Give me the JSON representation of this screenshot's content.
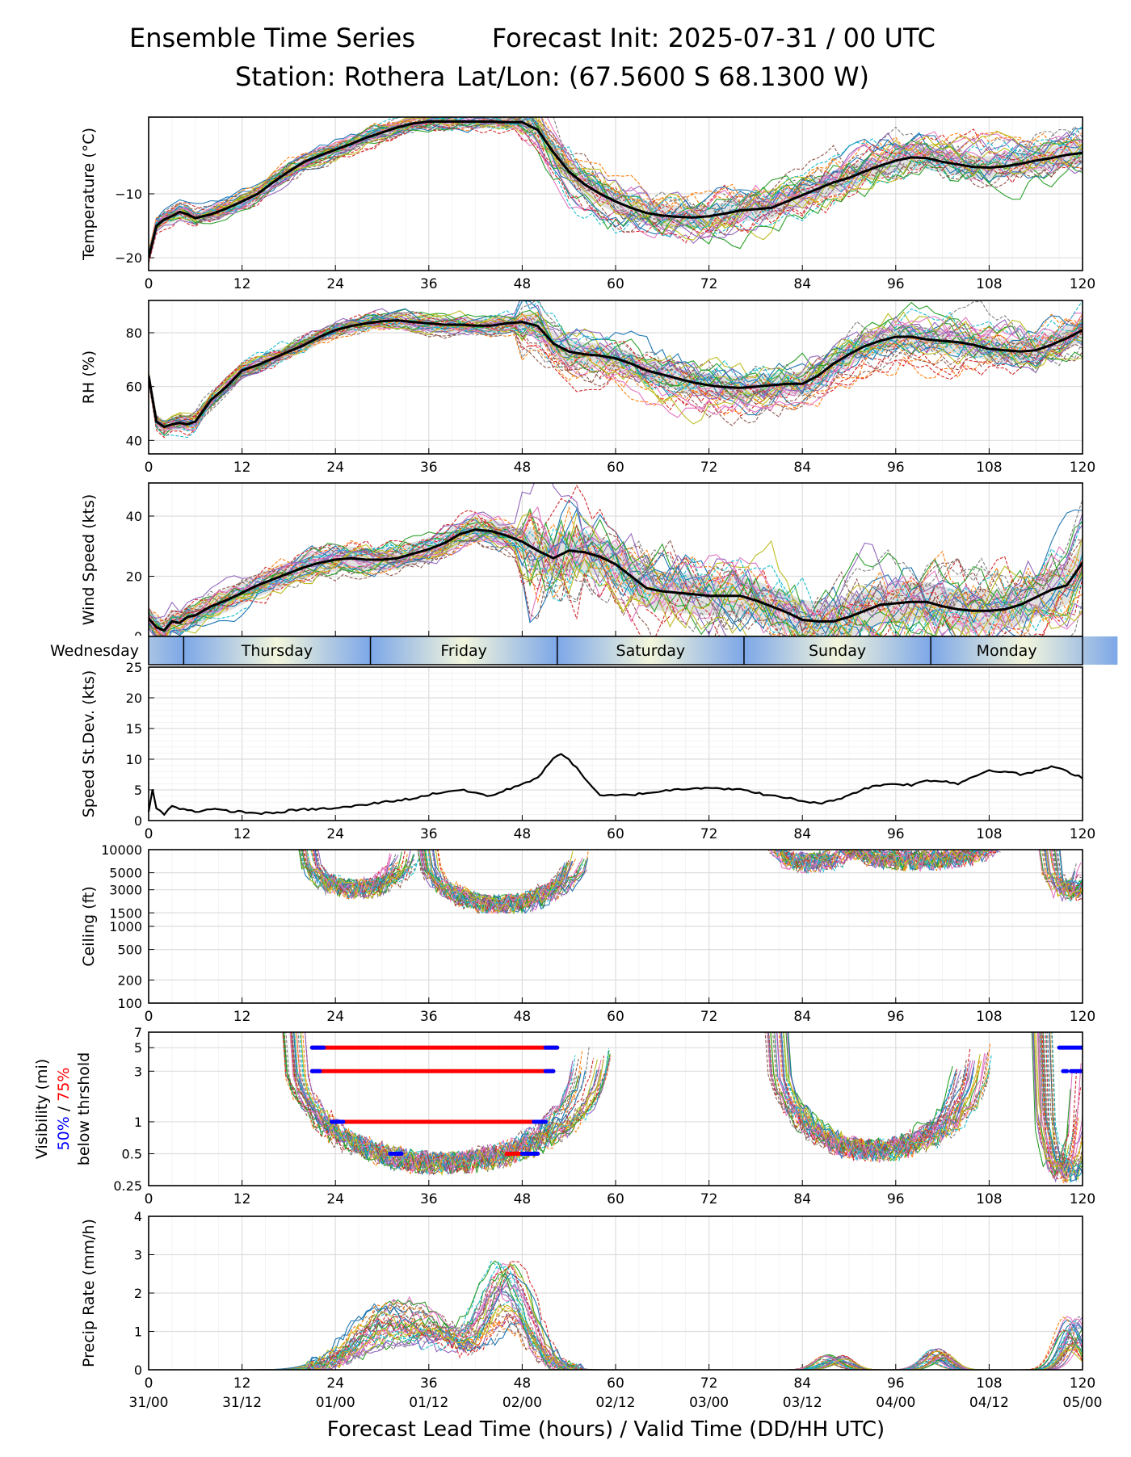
{
  "header": {
    "title": "Ensemble Time Series",
    "init": "Forecast Init: 2025-07-31 / 00 UTC",
    "station": "Station: Rothera",
    "latlon": "Lat/Lon: (67.5600 S 68.1300 W)"
  },
  "xaxis": {
    "lead_ticks": [
      0,
      12,
      24,
      36,
      48,
      60,
      72,
      84,
      96,
      108,
      120
    ],
    "valid_labels": [
      "31/00",
      "31/12",
      "01/00",
      "01/12",
      "02/00",
      "02/12",
      "03/00",
      "03/12",
      "04/00",
      "04/12",
      "05/00"
    ],
    "xlabel": "Forecast Lead Time (hours) / Valid Time (DD/HH UTC)",
    "range": [
      0,
      120
    ]
  },
  "days": [
    {
      "name": "Wednesday",
      "start": -20,
      "end": 4.5
    },
    {
      "name": "Thursday",
      "start": 4.5,
      "end": 28.5
    },
    {
      "name": "Friday",
      "start": 28.5,
      "end": 52.5
    },
    {
      "name": "Saturday",
      "start": 52.5,
      "end": 76.5
    },
    {
      "name": "Sunday",
      "start": 76.5,
      "end": 100.5
    },
    {
      "name": "Monday",
      "start": 100.5,
      "end": 124.5
    }
  ],
  "colors": {
    "ensemble_palette": [
      "#1f77b4",
      "#ff7f0e",
      "#2ca02c",
      "#d62728",
      "#9467bd",
      "#8c564b",
      "#e377c2",
      "#7f7f7f",
      "#bcbd22",
      "#17becf"
    ],
    "mean": "#000000",
    "spread": "#cccccc",
    "vis_50": "#0000ff",
    "vis_75": "#ff0000"
  },
  "vis_ylabel": {
    "line1": "Visibility (mi)",
    "p50": "50%",
    "slash": " / ",
    "p75": "75%",
    "line3": "below thrshold"
  },
  "chart_data": [
    {
      "id": "temperature",
      "type": "line",
      "ylabel": "Temperature (°C)",
      "ylim": [
        -22,
        2
      ],
      "yticks": [
        -20,
        -10
      ],
      "mean": {
        "x": [
          0,
          1,
          2,
          3,
          4,
          5,
          6,
          8,
          10,
          12,
          14,
          16,
          18,
          20,
          22,
          24,
          26,
          28,
          30,
          32,
          34,
          36,
          38,
          40,
          42,
          44,
          46,
          48,
          50,
          52,
          54,
          56,
          58,
          60,
          62,
          64,
          66,
          68,
          70,
          72,
          74,
          76,
          78,
          80,
          82,
          84,
          86,
          88,
          90,
          92,
          94,
          96,
          98,
          100,
          102,
          104,
          106,
          108,
          110,
          112,
          114,
          116,
          118,
          120
        ],
        "y": [
          -20,
          -15,
          -14,
          -13.5,
          -12.8,
          -13.2,
          -13.8,
          -13.2,
          -12.3,
          -11.2,
          -10,
          -8.2,
          -6.5,
          -5,
          -4,
          -3.1,
          -2.2,
          -1.2,
          -0.4,
          0.4,
          1,
          1.3,
          1.3,
          1.3,
          1.3,
          1.3,
          1.2,
          1.2,
          0,
          -3.5,
          -6.5,
          -8.5,
          -10,
          -11.2,
          -12.2,
          -13,
          -13.4,
          -13.6,
          -13.7,
          -13.5,
          -13.1,
          -12.6,
          -12.4,
          -12.2,
          -11.2,
          -10.2,
          -9.2,
          -8.2,
          -7.5,
          -6.5,
          -5.6,
          -4.8,
          -4.3,
          -4.4,
          -5,
          -5.4,
          -5.8,
          -5.9,
          -5.7,
          -5.3,
          -4.8,
          -4.4,
          -3.9,
          -3.6
        ]
      },
      "spread": 0.8
    },
    {
      "id": "rh",
      "type": "line",
      "ylabel": "RH (%)",
      "ylim": [
        35,
        92
      ],
      "yticks": [
        40,
        60,
        80
      ],
      "mean": {
        "x": [
          0,
          1,
          2,
          3,
          4,
          5,
          6,
          8,
          10,
          12,
          14,
          16,
          18,
          20,
          22,
          24,
          26,
          28,
          30,
          32,
          34,
          36,
          38,
          40,
          42,
          44,
          46,
          48,
          50,
          52,
          54,
          56,
          58,
          60,
          62,
          64,
          66,
          68,
          70,
          72,
          74,
          76,
          78,
          80,
          82,
          84,
          86,
          88,
          90,
          92,
          94,
          96,
          98,
          100,
          102,
          104,
          106,
          108,
          110,
          112,
          114,
          116,
          118,
          120
        ],
        "y": [
          64,
          47,
          45,
          46,
          46.5,
          46,
          47,
          55,
          60,
          66,
          68,
          70.5,
          73,
          75.5,
          78.5,
          81,
          82.5,
          83.5,
          84.3,
          84.6,
          84,
          83.5,
          83,
          83,
          82.6,
          82.6,
          83.5,
          84,
          82.5,
          76,
          73,
          72,
          71.5,
          70.5,
          68.5,
          66,
          64.5,
          63,
          61.5,
          60.5,
          59.8,
          59.5,
          60,
          60.5,
          61,
          61,
          64,
          68.5,
          72,
          75,
          77,
          78.5,
          78.5,
          77.5,
          77,
          76.5,
          75.5,
          74,
          73.5,
          73,
          73.5,
          75.5,
          78,
          81
        ]
      },
      "spread": 2.0
    },
    {
      "id": "wind",
      "type": "line",
      "ylabel": "Wind Speed (kts)",
      "ylim": [
        0,
        51
      ],
      "yticks": [
        0,
        20,
        40
      ],
      "mean": {
        "x": [
          0,
          1,
          2,
          3,
          4,
          5,
          6,
          8,
          10,
          12,
          14,
          16,
          18,
          20,
          22,
          24,
          26,
          28,
          30,
          32,
          34,
          36,
          38,
          40,
          42,
          44,
          46,
          48,
          50,
          52,
          54,
          56,
          58,
          60,
          62,
          64,
          66,
          68,
          70,
          72,
          74,
          76,
          78,
          80,
          82,
          84,
          86,
          88,
          90,
          92,
          94,
          96,
          98,
          100,
          102,
          104,
          106,
          108,
          110,
          112,
          114,
          116,
          118,
          120
        ],
        "y": [
          6,
          3,
          2,
          5,
          4.5,
          6.5,
          7,
          10,
          12,
          14.5,
          17,
          19,
          21,
          23,
          24.5,
          25.5,
          26,
          25.5,
          25.5,
          26,
          27.5,
          29,
          31,
          34,
          35.5,
          35,
          33.5,
          31.5,
          28.5,
          26,
          28.5,
          28,
          26.5,
          24,
          20,
          16,
          15,
          14.5,
          14,
          13.5,
          13.5,
          13.5,
          12,
          10,
          8,
          5.5,
          5,
          5,
          6.5,
          8.5,
          10.5,
          11,
          11.5,
          11.5,
          10,
          9,
          8.5,
          8.5,
          9,
          10.5,
          13,
          15.5,
          17,
          24.5
        ]
      },
      "spread": 3.0
    },
    {
      "id": "sd",
      "type": "line",
      "ylabel": "Speed St.Dev. (kts)",
      "ylim": [
        0,
        25
      ],
      "yticks": [
        0,
        5,
        10,
        15,
        20,
        25
      ],
      "series": [
        {
          "x": [
            0,
            0.5,
            1,
            2,
            3,
            4,
            6,
            8,
            10,
            12,
            14,
            16,
            18,
            20,
            22,
            24,
            26,
            28,
            30,
            32,
            34,
            36,
            38,
            40,
            42,
            44,
            46,
            48,
            50,
            52,
            53,
            54,
            56,
            58,
            60,
            62,
            64,
            66,
            68,
            70,
            72,
            74,
            76,
            78,
            80,
            82,
            84,
            86,
            88,
            90,
            92,
            94,
            96,
            98,
            100,
            102,
            104,
            106,
            108,
            110,
            112,
            114,
            116,
            118,
            120
          ],
          "y": [
            1.5,
            5,
            2,
            1,
            2.5,
            2,
            1.5,
            1.8,
            1.6,
            1.4,
            1.2,
            1.2,
            1.6,
            1.8,
            1.9,
            2,
            2.3,
            2.6,
            3,
            3.3,
            3.6,
            4.2,
            4.7,
            5,
            4.5,
            4,
            5,
            6,
            7,
            10,
            11,
            10,
            7,
            4,
            4.1,
            4.2,
            4.5,
            4.8,
            5.1,
            5.3,
            5.4,
            5.2,
            5,
            4.6,
            4,
            3.7,
            3.2,
            2.8,
            3.2,
            4.2,
            5.2,
            5.8,
            6,
            5.8,
            6.5,
            6.5,
            6,
            7.2,
            8.2,
            8,
            7.5,
            8,
            8.8,
            8,
            7
          ]
        }
      ]
    },
    {
      "id": "ceiling",
      "type": "line",
      "ylabel": "Ceiling (ft)",
      "yscale": "log",
      "ylim": [
        100,
        10000
      ],
      "yticks": [
        100,
        200,
        500,
        1000,
        1500,
        3000,
        5000,
        10000
      ]
    },
    {
      "id": "visibility",
      "type": "line",
      "yscale": "log",
      "ylim": [
        0.25,
        7
      ],
      "yticks": [
        0.25,
        0.5,
        1,
        3,
        5,
        7
      ],
      "bars_75": [
        {
          "y": 5,
          "x0": 21,
          "x1": 52.5
        },
        {
          "y": 3,
          "x0": 21,
          "x1": 52
        },
        {
          "y": 1,
          "x0": 23.5,
          "x1": 51
        },
        {
          "y": 0.5,
          "x0": 46,
          "x1": 50
        }
      ],
      "bars_50": [
        {
          "y": 5,
          "x0": 21,
          "x1": 22.5
        },
        {
          "y": 5,
          "x0": 51,
          "x1": 52.5
        },
        {
          "y": 3,
          "x0": 21,
          "x1": 22
        },
        {
          "y": 3,
          "x0": 51,
          "x1": 52
        },
        {
          "y": 1,
          "x0": 23.5,
          "x1": 25
        },
        {
          "y": 1,
          "x0": 49.5,
          "x1": 51
        },
        {
          "y": 0.5,
          "x0": 31,
          "x1": 32.5
        },
        {
          "y": 0.5,
          "x0": 48,
          "x1": 50
        },
        {
          "y": 5,
          "x0": 117,
          "x1": 120
        },
        {
          "y": 3,
          "x0": 118.5,
          "x1": 120
        },
        {
          "y": 3,
          "x0": 117.5,
          "x1": 118
        }
      ]
    },
    {
      "id": "precip",
      "type": "line",
      "ylabel": "Precip Rate (mm/h)",
      "ylim": [
        0,
        4
      ],
      "yticks": [
        0,
        1,
        2,
        3,
        4
      ]
    }
  ]
}
